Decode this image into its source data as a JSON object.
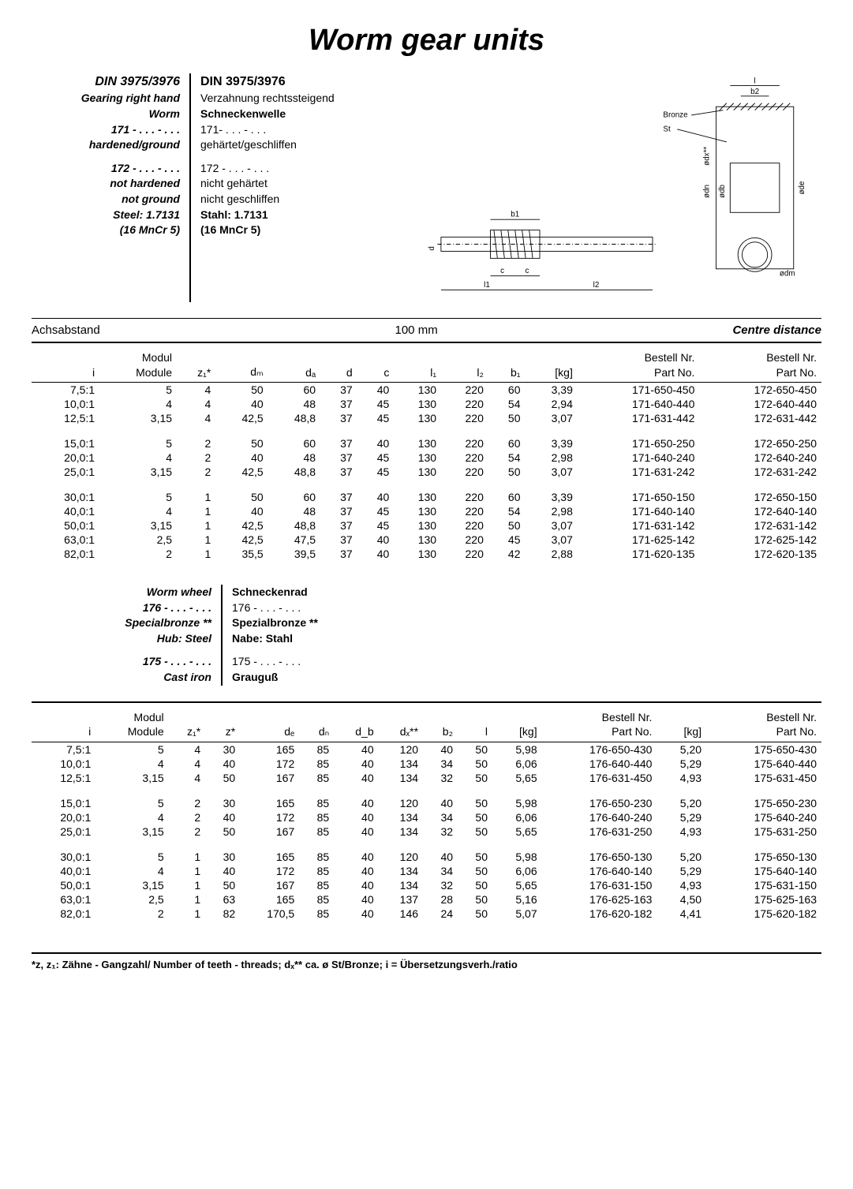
{
  "title": "Worm gear units",
  "spec_left": {
    "heading": "DIN 3975/3976",
    "l1": "Gearing right hand",
    "l2": "Worm",
    "l3": "171 - . . . - . . .",
    "l4": "hardened/ground",
    "l5": "172 - . . . - . . .",
    "l6": "not hardened",
    "l7": "not ground",
    "l8": "Steel: 1.7131",
    "l9": "(16 MnCr 5)"
  },
  "spec_right": {
    "heading": "DIN 3975/3976",
    "l1": "Verzahnung rechtssteigend",
    "l2": "Schneckenwelle",
    "l3": "171- . . . - . . .",
    "l4": "gehärtet/geschliffen",
    "l5": "172 - . . . - . . .",
    "l6": "nicht gehärtet",
    "l7": "nicht geschliffen",
    "l8": "Stahl: 1.7131",
    "l9": "(16 MnCr 5)"
  },
  "diagram_labels": {
    "bronze": "Bronze",
    "st": "St",
    "b1": "b1",
    "b2": "b2",
    "l1": "l1",
    "l2": "l2",
    "c": "c",
    "d": "d",
    "odx": "ødx**",
    "odn": "ødn",
    "odb": "ødb",
    "ode": "øde",
    "odm": "ødm",
    "l": "l"
  },
  "section1": {
    "left": "Achsabstand",
    "mid": "100 mm",
    "right": "Centre distance"
  },
  "table1_headers_top": [
    "",
    "Modul",
    "",
    "",
    "",
    "",
    "",
    "",
    "",
    "",
    "",
    "Bestell Nr.",
    "Bestell Nr."
  ],
  "table1_headers_bot": [
    "i",
    "Module",
    "z₁*",
    "dₘ",
    "dₐ",
    "d",
    "c",
    "l₁",
    "l₂",
    "b₁",
    "[kg]",
    "Part No.",
    "Part No."
  ],
  "table1_rows": [
    [
      "7,5:1",
      "5",
      "4",
      "50",
      "60",
      "37",
      "40",
      "130",
      "220",
      "60",
      "3,39",
      "171-650-450",
      "172-650-450"
    ],
    [
      "10,0:1",
      "4",
      "4",
      "40",
      "48",
      "37",
      "45",
      "130",
      "220",
      "54",
      "2,94",
      "171-640-440",
      "172-640-440"
    ],
    [
      "12,5:1",
      "3,15",
      "4",
      "42,5",
      "48,8",
      "37",
      "45",
      "130",
      "220",
      "50",
      "3,07",
      "171-631-442",
      "172-631-442"
    ],
    [],
    [
      "15,0:1",
      "5",
      "2",
      "50",
      "60",
      "37",
      "40",
      "130",
      "220",
      "60",
      "3,39",
      "171-650-250",
      "172-650-250"
    ],
    [
      "20,0:1",
      "4",
      "2",
      "40",
      "48",
      "37",
      "45",
      "130",
      "220",
      "54",
      "2,98",
      "171-640-240",
      "172-640-240"
    ],
    [
      "25,0:1",
      "3,15",
      "2",
      "42,5",
      "48,8",
      "37",
      "45",
      "130",
      "220",
      "50",
      "3,07",
      "171-631-242",
      "172-631-242"
    ],
    [],
    [
      "30,0:1",
      "5",
      "1",
      "50",
      "60",
      "37",
      "40",
      "130",
      "220",
      "60",
      "3,39",
      "171-650-150",
      "172-650-150"
    ],
    [
      "40,0:1",
      "4",
      "1",
      "40",
      "48",
      "37",
      "45",
      "130",
      "220",
      "54",
      "2,98",
      "171-640-140",
      "172-640-140"
    ],
    [
      "50,0:1",
      "3,15",
      "1",
      "42,5",
      "48,8",
      "37",
      "45",
      "130",
      "220",
      "50",
      "3,07",
      "171-631-142",
      "172-631-142"
    ],
    [
      "63,0:1",
      "2,5",
      "1",
      "42,5",
      "47,5",
      "37",
      "40",
      "130",
      "220",
      "45",
      "3,07",
      "171-625-142",
      "172-625-142"
    ],
    [
      "82,0:1",
      "2",
      "1",
      "35,5",
      "39,5",
      "37",
      "40",
      "130",
      "220",
      "42",
      "2,88",
      "171-620-135",
      "172-620-135"
    ]
  ],
  "wheel_left": {
    "l1": "Worm wheel",
    "l2": "176 - . . . - . . .",
    "l3": "Specialbronze **",
    "l4": "Hub: Steel",
    "l5": "175 - . . . - . . .",
    "l6": "Cast iron"
  },
  "wheel_right": {
    "l1": "Schneckenrad",
    "l2": "176 - . . . - . . .",
    "l3": "Spezialbronze **",
    "l4": "Nabe: Stahl",
    "l5": "175 - . . . - . . .",
    "l6": "Grauguß"
  },
  "table2_headers_top": [
    "",
    "Modul",
    "",
    "",
    "",
    "",
    "",
    "",
    "",
    "",
    "",
    "Bestell Nr.",
    "",
    "Bestell Nr."
  ],
  "table2_headers_bot": [
    "i",
    "Module",
    "z₁*",
    "z*",
    "dₑ",
    "dₙ",
    "d_b",
    "dₓ**",
    "b₂",
    "l",
    "[kg]",
    "Part No.",
    "[kg]",
    "Part No."
  ],
  "table2_rows": [
    [
      "7,5:1",
      "5",
      "4",
      "30",
      "165",
      "85",
      "40",
      "120",
      "40",
      "50",
      "5,98",
      "176-650-430",
      "5,20",
      "175-650-430"
    ],
    [
      "10,0:1",
      "4",
      "4",
      "40",
      "172",
      "85",
      "40",
      "134",
      "34",
      "50",
      "6,06",
      "176-640-440",
      "5,29",
      "175-640-440"
    ],
    [
      "12,5:1",
      "3,15",
      "4",
      "50",
      "167",
      "85",
      "40",
      "134",
      "32",
      "50",
      "5,65",
      "176-631-450",
      "4,93",
      "175-631-450"
    ],
    [],
    [
      "15,0:1",
      "5",
      "2",
      "30",
      "165",
      "85",
      "40",
      "120",
      "40",
      "50",
      "5,98",
      "176-650-230",
      "5,20",
      "175-650-230"
    ],
    [
      "20,0:1",
      "4",
      "2",
      "40",
      "172",
      "85",
      "40",
      "134",
      "34",
      "50",
      "6,06",
      "176-640-240",
      "5,29",
      "175-640-240"
    ],
    [
      "25,0:1",
      "3,15",
      "2",
      "50",
      "167",
      "85",
      "40",
      "134",
      "32",
      "50",
      "5,65",
      "176-631-250",
      "4,93",
      "175-631-250"
    ],
    [],
    [
      "30,0:1",
      "5",
      "1",
      "30",
      "165",
      "85",
      "40",
      "120",
      "40",
      "50",
      "5,98",
      "176-650-130",
      "5,20",
      "175-650-130"
    ],
    [
      "40,0:1",
      "4",
      "1",
      "40",
      "172",
      "85",
      "40",
      "134",
      "34",
      "50",
      "6,06",
      "176-640-140",
      "5,29",
      "175-640-140"
    ],
    [
      "50,0:1",
      "3,15",
      "1",
      "50",
      "167",
      "85",
      "40",
      "134",
      "32",
      "50",
      "5,65",
      "176-631-150",
      "4,93",
      "175-631-150"
    ],
    [
      "63,0:1",
      "2,5",
      "1",
      "63",
      "165",
      "85",
      "40",
      "137",
      "28",
      "50",
      "5,16",
      "176-625-163",
      "4,50",
      "175-625-163"
    ],
    [
      "82,0:1",
      "2",
      "1",
      "82",
      "170,5",
      "85",
      "40",
      "146",
      "24",
      "50",
      "5,07",
      "176-620-182",
      "4,41",
      "175-620-182"
    ]
  ],
  "footnote": "*z, z₁: Zähne - Gangzahl/ Number of teeth - threads; dₓ** ca. ø St/Bronze; i = Übersetzungsverh./ratio"
}
